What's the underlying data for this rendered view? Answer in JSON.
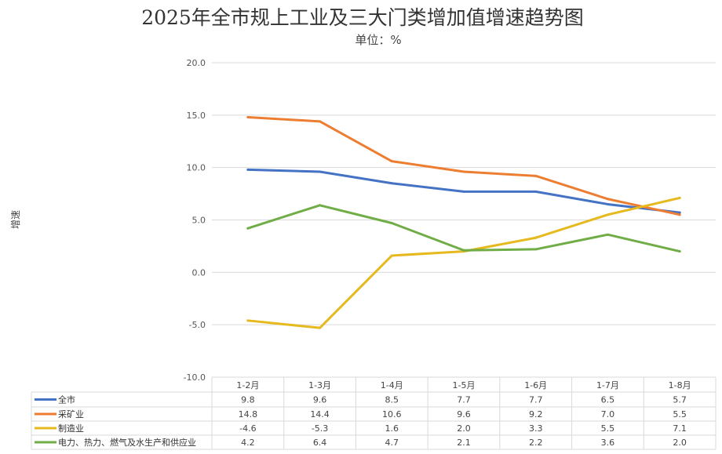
{
  "chart_data": {
    "type": "line",
    "title": "2025年全市规上工业及三大门类增加值增速趋势图",
    "subtitle": "单位：%",
    "ylabel": "增速",
    "xlabel": "",
    "ylim": [
      -10,
      20
    ],
    "yticks": [
      "20.0",
      "15.0",
      "10.0",
      "5.0",
      "0.0",
      "-5.0",
      "-10.0"
    ],
    "ytick_values": [
      20,
      15,
      10,
      5,
      0,
      -5,
      -10
    ],
    "grid": true,
    "legend": "bottom-table",
    "categories": [
      "1-2月",
      "1-3月",
      "1-4月",
      "1-5月",
      "1-6月",
      "1-7月",
      "1-8月"
    ],
    "series": [
      {
        "name": "全市",
        "color": "#4472C4",
        "values": [
          9.8,
          9.6,
          8.5,
          7.7,
          7.7,
          6.5,
          5.7
        ],
        "labels": [
          "9.8",
          "9.6",
          "8.5",
          "7.7",
          "7.7",
          "6.5",
          "5.7"
        ]
      },
      {
        "name": "采矿业",
        "color": "#ED7D31",
        "values": [
          14.8,
          14.4,
          10.6,
          9.6,
          9.2,
          7.0,
          5.5
        ],
        "labels": [
          "14.8",
          "14.4",
          "10.6",
          "9.6",
          "9.2",
          "7.0",
          "5.5"
        ]
      },
      {
        "name": "制造业",
        "color": "#E6B91E",
        "values": [
          -4.6,
          -5.3,
          1.6,
          2.0,
          3.3,
          5.5,
          7.1
        ],
        "labels": [
          "-4.6",
          "-5.3",
          "1.6",
          "2.0",
          "3.3",
          "5.5",
          "7.1"
        ]
      },
      {
        "name": "电力、热力、燃气及水生产和供应业",
        "color": "#70AD47",
        "values": [
          4.2,
          6.4,
          4.7,
          2.1,
          2.2,
          3.6,
          2.0
        ],
        "labels": [
          "4.2",
          "6.4",
          "4.7",
          "2.1",
          "2.2",
          "3.6",
          "2.0"
        ]
      }
    ]
  }
}
